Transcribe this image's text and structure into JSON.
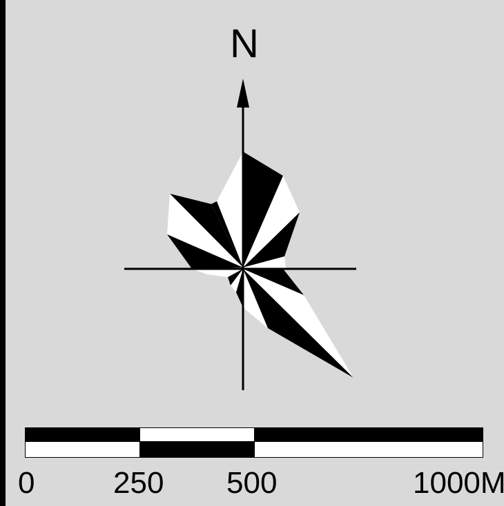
{
  "compass": {
    "north_label": "N",
    "colors": {
      "dark": "#000000",
      "light": "#ffffff",
      "background": "#d9d9d9"
    }
  },
  "wind_rose": {
    "description_free": true,
    "sectors": 16
  },
  "scale_bar": {
    "ticks": [
      "0",
      "250",
      "500",
      "1000M"
    ],
    "tick_values": [
      0,
      250,
      500,
      1000
    ],
    "unit": "M"
  }
}
